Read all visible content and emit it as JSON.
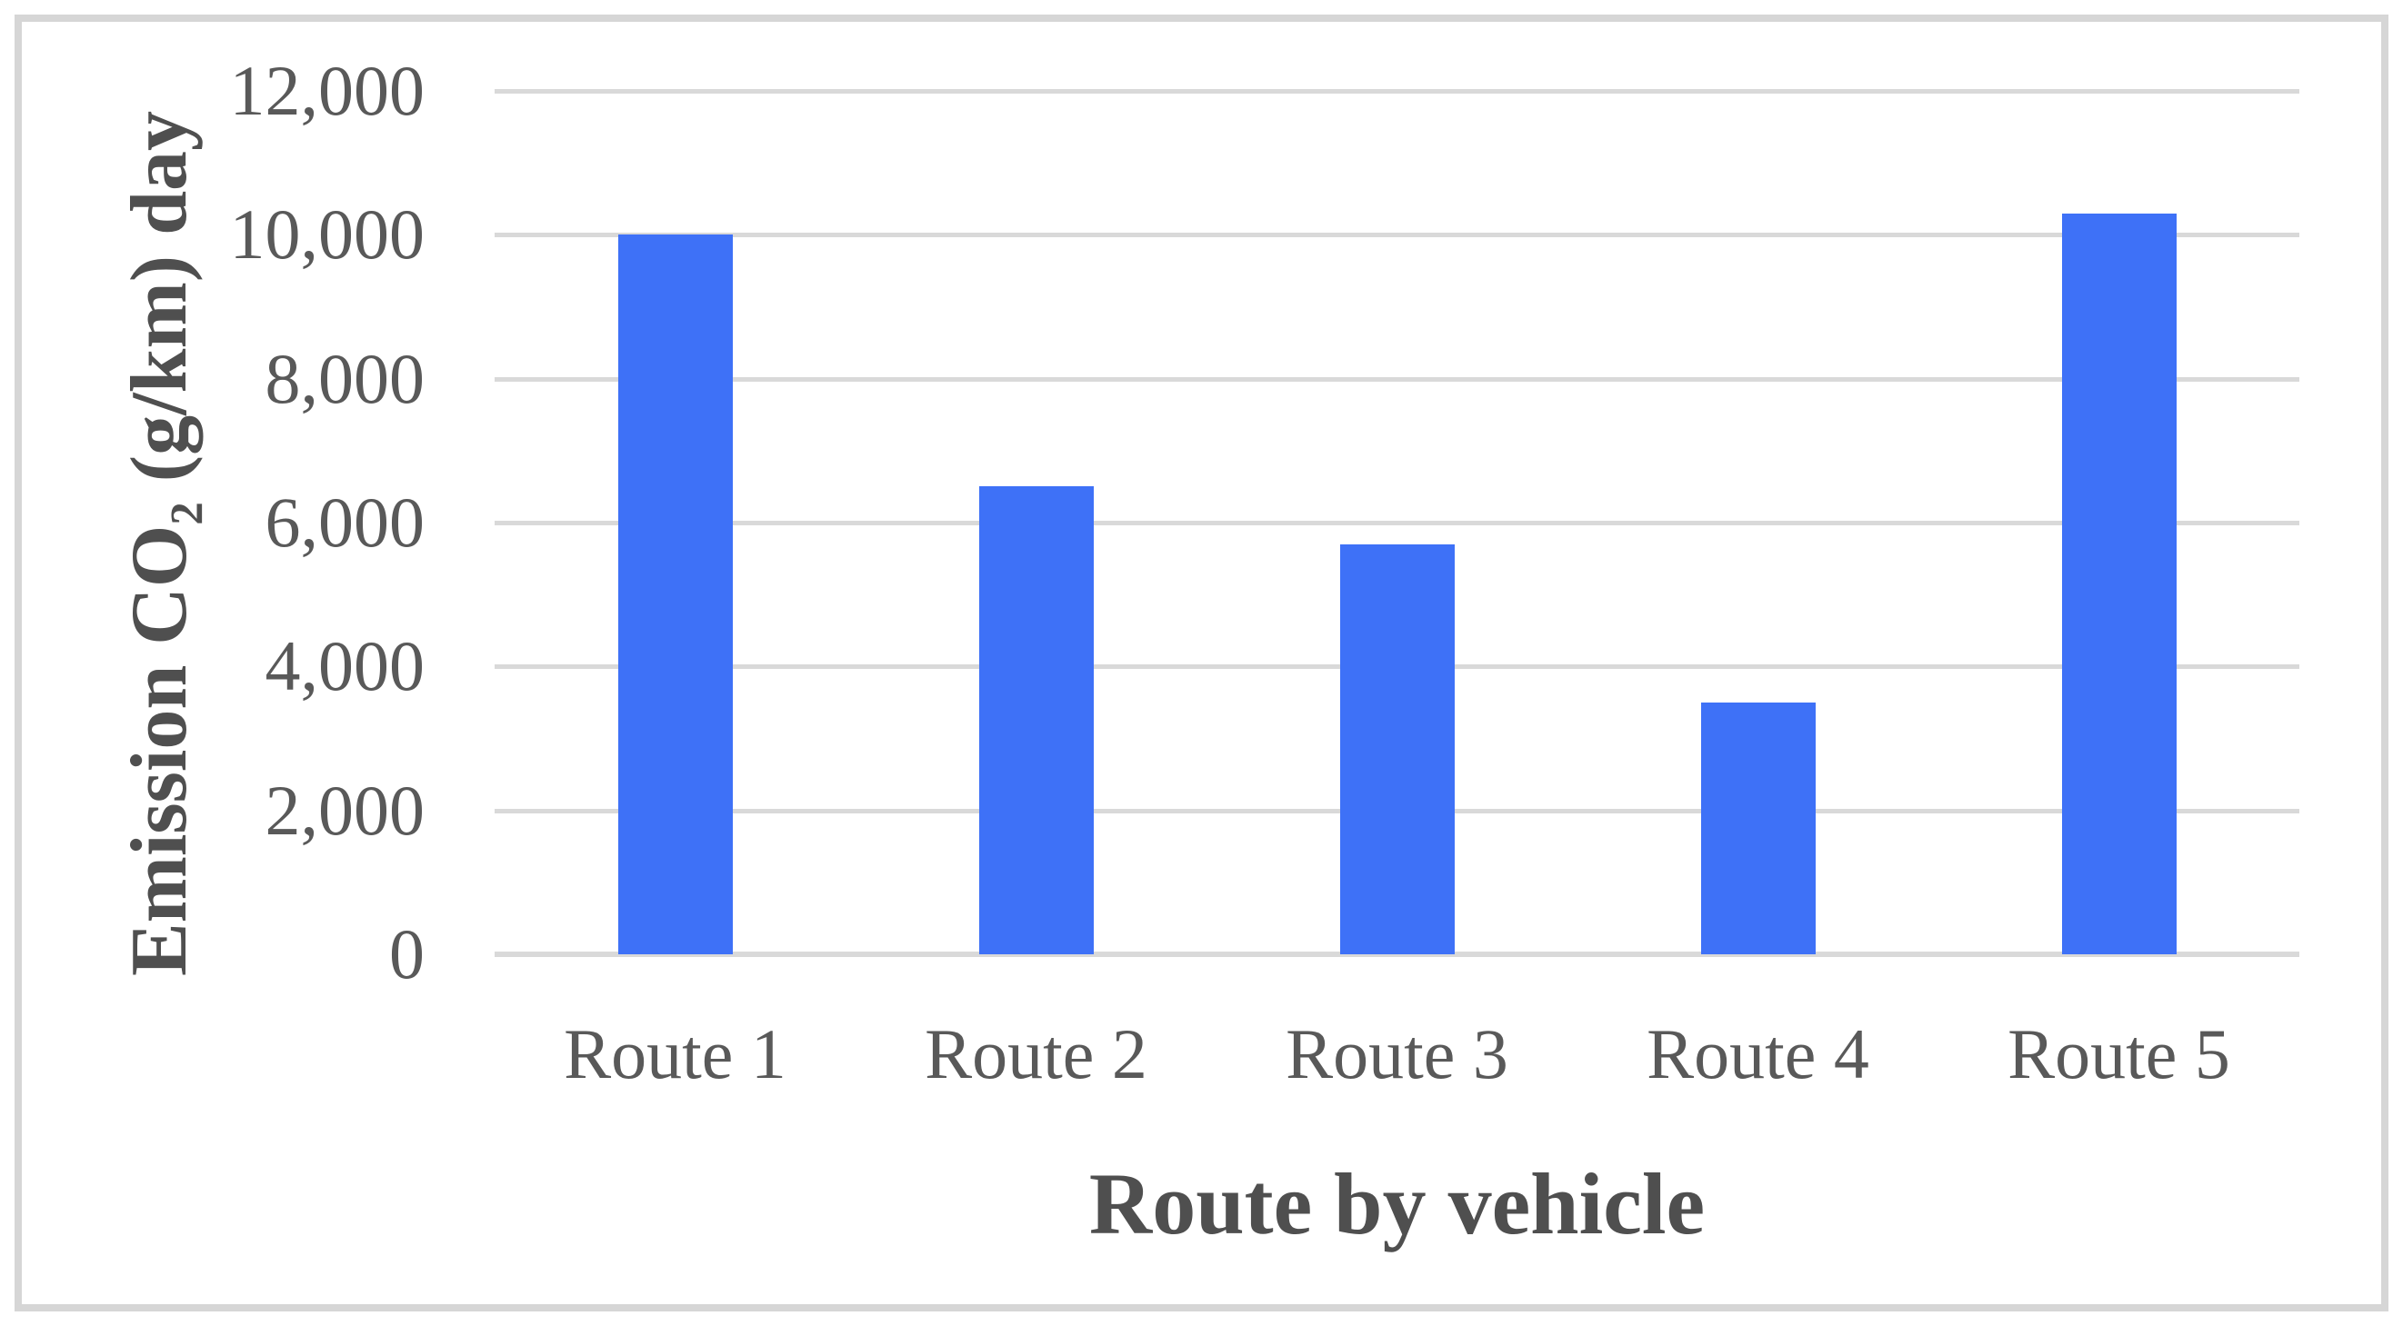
{
  "figure": {
    "background": "#ffffff",
    "border_color": "#d6d6d6"
  },
  "chart_data": {
    "type": "bar",
    "categories": [
      "Route 1",
      "Route 2",
      "Route 3",
      "Route 4",
      "Route 5"
    ],
    "values": [
      10000,
      6500,
      5700,
      3500,
      10300
    ],
    "title": "",
    "xlabel": "Route by vehicle",
    "ylabel": "Emission CO2 (g/km) day",
    "ylabel_parts": {
      "prefix": "Emission CO",
      "subscript": "2",
      "suffix": " (g/km) day"
    },
    "ylim": [
      0,
      12000
    ],
    "yticks": [
      0,
      2000,
      4000,
      6000,
      8000,
      10000,
      12000
    ],
    "ytick_labels": [
      "0",
      "2,000",
      "4,000",
      "6,000",
      "8,000",
      "10,000",
      "12,000"
    ],
    "grid": "horizontal",
    "legend": "none",
    "bar_color": "#3e71f7",
    "gridline_color": "#d9d9d9",
    "tick_text_color": "#595959",
    "axis_title_color": "#4f4f4f"
  }
}
